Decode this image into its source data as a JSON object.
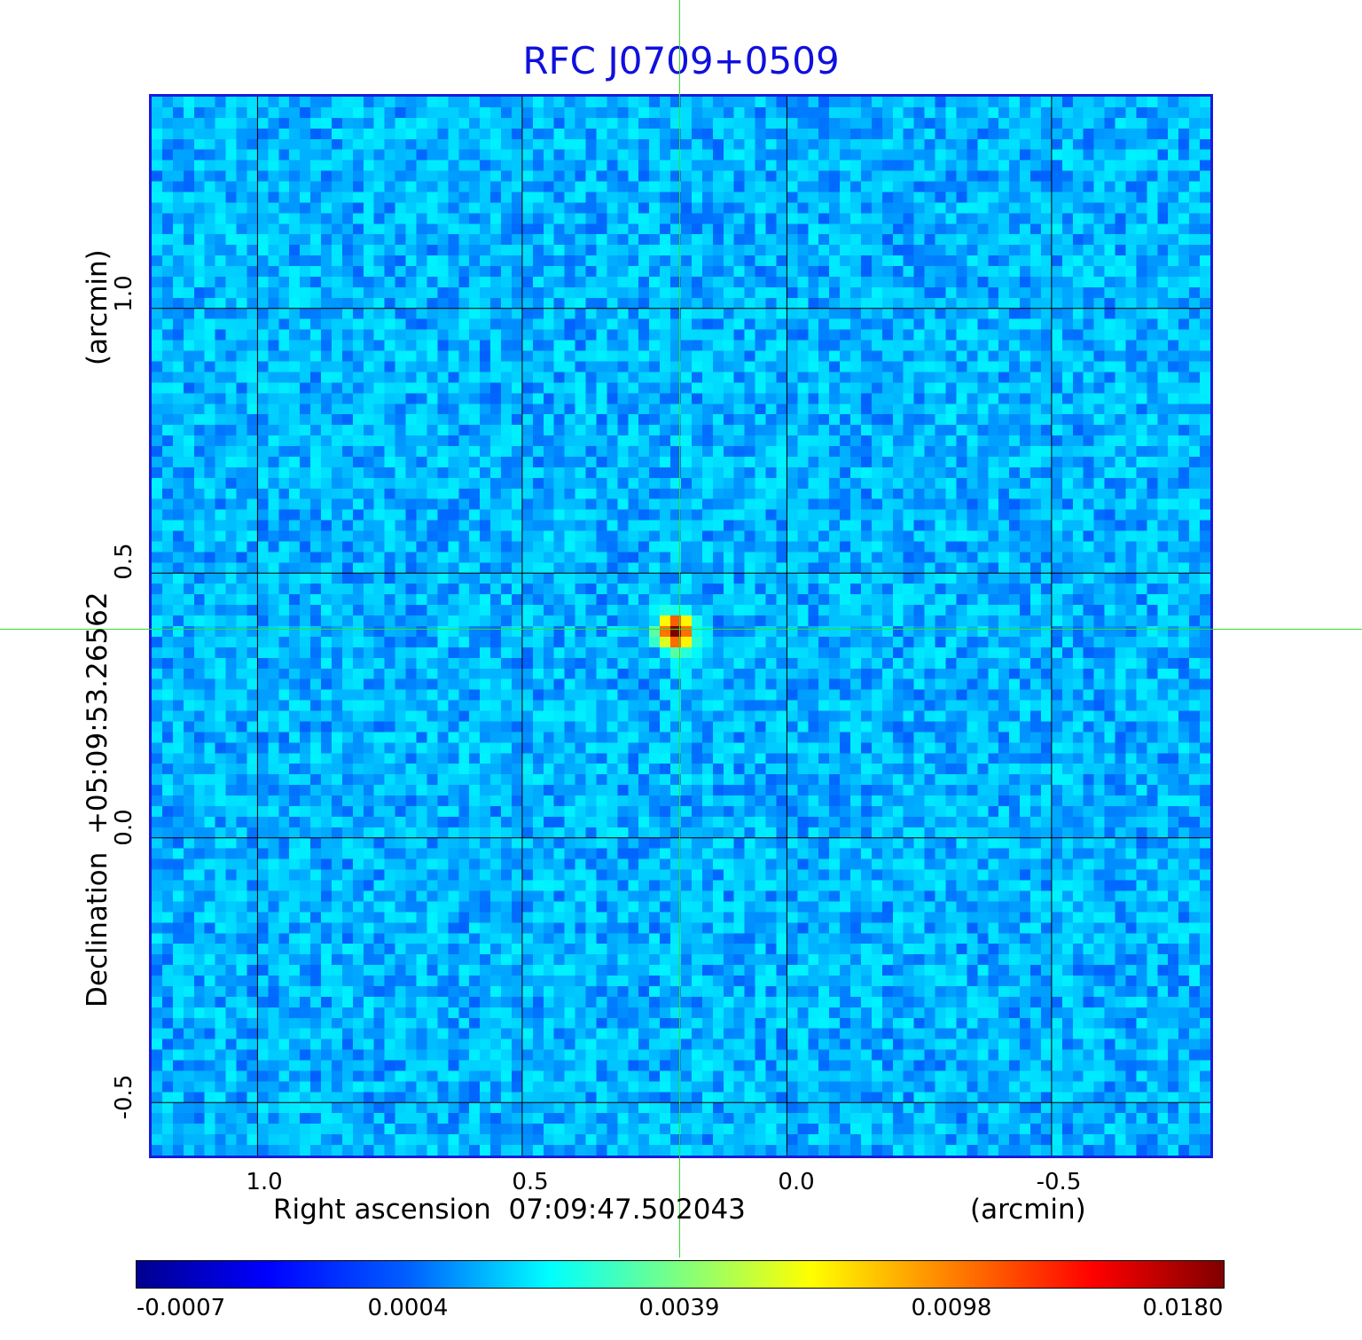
{
  "title": "RFC J0709+0509",
  "x_axis": {
    "label": "Right ascension  07:09:47.502043",
    "unit": "(arcmin)",
    "ticks": [
      "1.0",
      "0.5",
      "0.0",
      "-0.5"
    ]
  },
  "y_axis": {
    "label": "Declination  +05:09:53.26562",
    "unit": "(arcmin)",
    "ticks": [
      "1.0",
      "0.5",
      "0.0",
      "-0.5"
    ]
  },
  "colorbar": {
    "colormap": "jet",
    "ticks": [
      "-0.0007",
      "0.0004",
      "0.0039",
      "0.0098",
      "0.0180"
    ]
  },
  "colors": {
    "title": "#1010dd",
    "frame": "#1a1add",
    "crosshair": "#33dd33",
    "grid": "#000000"
  },
  "chart_data": {
    "type": "heatmap",
    "title": "RFC J0709+0509",
    "xlabel": "Right ascension  07:09:47.502043 (arcmin)",
    "ylabel": "Declination  +05:09:53.26562 (arcmin)",
    "xlim": [
      1.2,
      -0.8
    ],
    "ylim": [
      -0.6,
      1.4
    ],
    "x_ticks": [
      1.0,
      0.5,
      0.0,
      -0.5
    ],
    "y_ticks": [
      1.0,
      0.5,
      0.0,
      -0.5
    ],
    "grid": true,
    "peak": {
      "x": 0.21,
      "y": 0.39,
      "value": 0.018
    },
    "value_range": [
      -0.0007,
      0.018
    ],
    "background_level": 0.0004,
    "colorbar_ticks": [
      -0.0007,
      0.0004,
      0.0039,
      0.0098,
      0.018
    ]
  }
}
